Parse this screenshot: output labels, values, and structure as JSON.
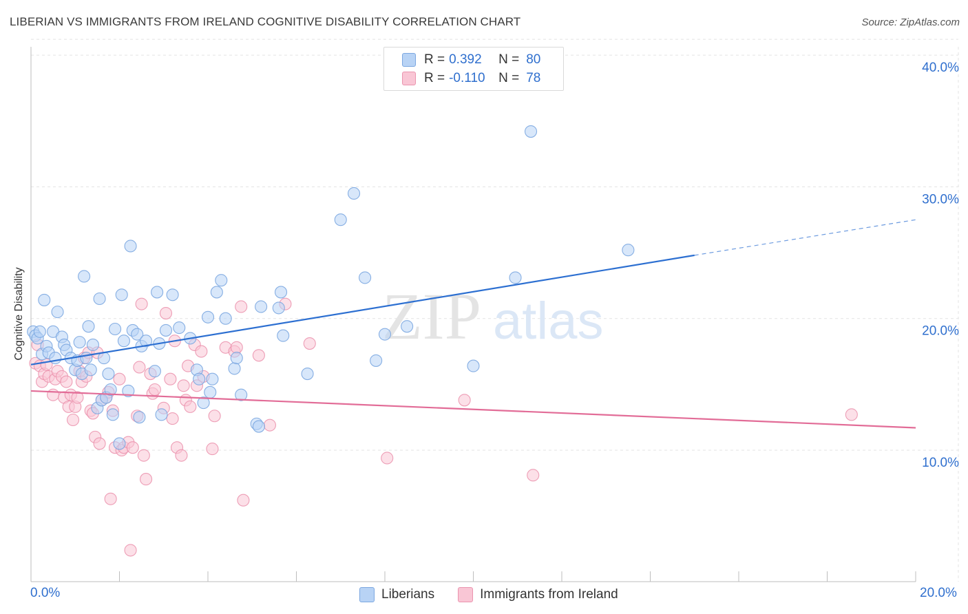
{
  "title": "LIBERIAN VS IMMIGRANTS FROM IRELAND COGNITIVE DISABILITY CORRELATION CHART",
  "source": "Source: ZipAtlas.com",
  "watermark": {
    "zip": "ZIP",
    "atlas": "atlas"
  },
  "legend": {
    "r_label": "R =",
    "n_label": "N =",
    "rows": [
      {
        "r": "0.392",
        "n": "80",
        "color": "#b8d3f5"
      },
      {
        "r": "-0.110",
        "n": "78",
        "color": "#f9c6d5"
      }
    ]
  },
  "bottom_legend": [
    "Liberians",
    "Immigrants from Ireland"
  ],
  "chart_data": {
    "type": "scatter",
    "title": "LIBERIAN VS IMMIGRANTS FROM IRELAND COGNITIVE DISABILITY CORRELATION CHART",
    "xlabel": "",
    "ylabel": "Cognitive Disability",
    "xlim": [
      0,
      20
    ],
    "ylim": [
      0,
      42
    ],
    "x_tick_labels": [
      "0.0%",
      "20.0%"
    ],
    "y_tick_labels": [
      "10.0%",
      "20.0%",
      "30.0%",
      "40.0%"
    ],
    "y_ticks": [
      10,
      20,
      30,
      40
    ],
    "x_minor_ticks": [
      0,
      2,
      4,
      6,
      8,
      10,
      12,
      14,
      16,
      18,
      20
    ],
    "grid": true,
    "series": [
      {
        "name": "Liberians",
        "color": "#7aa6e0",
        "fill": "#b8d3f5",
        "trend": {
          "x0": 0,
          "y0": 16.5,
          "x1": 15,
          "y1": 24.8,
          "dash_to_x": 20,
          "dash_to_y": 27.5,
          "color": "#2c6fd1"
        },
        "points": [
          [
            0.05,
            19.0
          ],
          [
            0.1,
            18.7
          ],
          [
            0.15,
            18.5
          ],
          [
            0.2,
            19.0
          ],
          [
            0.25,
            17.3
          ],
          [
            0.3,
            21.4
          ],
          [
            0.35,
            17.9
          ],
          [
            0.4,
            17.4
          ],
          [
            0.5,
            19.0
          ],
          [
            0.55,
            17.0
          ],
          [
            0.6,
            20.5
          ],
          [
            0.7,
            18.6
          ],
          [
            0.75,
            18.0
          ],
          [
            0.8,
            17.6
          ],
          [
            0.9,
            17.0
          ],
          [
            1.0,
            16.1
          ],
          [
            1.05,
            16.8
          ],
          [
            1.1,
            18.2
          ],
          [
            1.15,
            15.8
          ],
          [
            1.2,
            23.2
          ],
          [
            1.25,
            17.0
          ],
          [
            1.3,
            19.4
          ],
          [
            1.35,
            16.1
          ],
          [
            1.4,
            18.0
          ],
          [
            1.5,
            13.2
          ],
          [
            1.55,
            21.5
          ],
          [
            1.6,
            13.8
          ],
          [
            1.65,
            17.0
          ],
          [
            1.7,
            14.0
          ],
          [
            1.75,
            15.8
          ],
          [
            1.8,
            14.6
          ],
          [
            1.85,
            12.7
          ],
          [
            1.9,
            19.2
          ],
          [
            2.0,
            10.5
          ],
          [
            2.05,
            21.8
          ],
          [
            2.1,
            18.3
          ],
          [
            2.2,
            14.5
          ],
          [
            2.25,
            25.5
          ],
          [
            2.3,
            19.1
          ],
          [
            2.4,
            18.8
          ],
          [
            2.45,
            12.5
          ],
          [
            2.5,
            17.9
          ],
          [
            2.6,
            18.3
          ],
          [
            2.8,
            16.0
          ],
          [
            2.85,
            22.0
          ],
          [
            2.9,
            18.1
          ],
          [
            2.95,
            12.7
          ],
          [
            3.05,
            19.1
          ],
          [
            3.2,
            21.8
          ],
          [
            3.35,
            19.3
          ],
          [
            3.6,
            18.5
          ],
          [
            3.75,
            16.1
          ],
          [
            3.8,
            15.4
          ],
          [
            3.9,
            13.6
          ],
          [
            4.0,
            20.1
          ],
          [
            4.05,
            14.4
          ],
          [
            4.1,
            15.4
          ],
          [
            4.2,
            22.0
          ],
          [
            4.3,
            22.9
          ],
          [
            4.4,
            20.0
          ],
          [
            4.6,
            16.2
          ],
          [
            4.65,
            17.0
          ],
          [
            4.75,
            14.2
          ],
          [
            5.1,
            12.0
          ],
          [
            5.15,
            11.8
          ],
          [
            5.2,
            20.9
          ],
          [
            5.6,
            20.8
          ],
          [
            5.65,
            22.0
          ],
          [
            5.7,
            18.7
          ],
          [
            6.25,
            15.8
          ],
          [
            7.0,
            27.5
          ],
          [
            7.3,
            29.5
          ],
          [
            7.55,
            23.1
          ],
          [
            7.8,
            16.8
          ],
          [
            8.0,
            18.8
          ],
          [
            8.5,
            19.4
          ],
          [
            10.0,
            16.4
          ],
          [
            10.95,
            23.1
          ],
          [
            11.3,
            34.2
          ],
          [
            13.5,
            25.2
          ]
        ]
      },
      {
        "name": "Immigrants from Ireland",
        "color": "#eb93ae",
        "fill": "#f9c6d5",
        "trend": {
          "x0": 0,
          "y0": 14.5,
          "x1": 20,
          "y1": 11.7,
          "color": "#e26c97"
        },
        "points": [
          [
            0.1,
            16.6
          ],
          [
            0.15,
            18.0
          ],
          [
            0.2,
            16.4
          ],
          [
            0.25,
            15.2
          ],
          [
            0.3,
            15.8
          ],
          [
            0.35,
            16.5
          ],
          [
            0.4,
            15.6
          ],
          [
            0.5,
            14.2
          ],
          [
            0.55,
            15.4
          ],
          [
            0.6,
            16.0
          ],
          [
            0.7,
            15.6
          ],
          [
            0.75,
            14.0
          ],
          [
            0.8,
            15.2
          ],
          [
            0.85,
            13.3
          ],
          [
            0.9,
            14.2
          ],
          [
            0.95,
            12.3
          ],
          [
            1.0,
            13.3
          ],
          [
            1.05,
            14.0
          ],
          [
            1.1,
            16.0
          ],
          [
            1.15,
            15.2
          ],
          [
            1.2,
            17.0
          ],
          [
            1.25,
            15.6
          ],
          [
            1.3,
            17.4
          ],
          [
            1.35,
            13.0
          ],
          [
            1.4,
            12.8
          ],
          [
            1.45,
            11.0
          ],
          [
            1.5,
            17.4
          ],
          [
            1.55,
            10.5
          ],
          [
            1.6,
            13.8
          ],
          [
            1.7,
            14.0
          ],
          [
            1.75,
            14.4
          ],
          [
            1.8,
            6.3
          ],
          [
            1.85,
            13.0
          ],
          [
            1.9,
            10.2
          ],
          [
            2.0,
            15.4
          ],
          [
            2.05,
            10.0
          ],
          [
            2.1,
            10.2
          ],
          [
            2.2,
            10.6
          ],
          [
            2.25,
            2.4
          ],
          [
            2.3,
            10.2
          ],
          [
            2.4,
            12.6
          ],
          [
            2.45,
            16.3
          ],
          [
            2.5,
            21.1
          ],
          [
            2.55,
            9.6
          ],
          [
            2.6,
            7.8
          ],
          [
            2.7,
            15.8
          ],
          [
            2.75,
            14.3
          ],
          [
            2.8,
            14.6
          ],
          [
            3.0,
            13.2
          ],
          [
            3.05,
            20.4
          ],
          [
            3.15,
            15.4
          ],
          [
            3.2,
            12.4
          ],
          [
            3.25,
            18.3
          ],
          [
            3.3,
            10.2
          ],
          [
            3.4,
            9.6
          ],
          [
            3.45,
            14.9
          ],
          [
            3.5,
            13.8
          ],
          [
            3.55,
            16.4
          ],
          [
            3.6,
            13.3
          ],
          [
            3.7,
            18.0
          ],
          [
            3.75,
            14.9
          ],
          [
            3.85,
            17.5
          ],
          [
            3.9,
            15.6
          ],
          [
            4.1,
            10.1
          ],
          [
            4.15,
            12.6
          ],
          [
            4.4,
            17.8
          ],
          [
            4.6,
            17.5
          ],
          [
            4.65,
            17.8
          ],
          [
            4.75,
            20.9
          ],
          [
            4.8,
            6.2
          ],
          [
            5.15,
            17.2
          ],
          [
            5.4,
            11.9
          ],
          [
            5.75,
            21.1
          ],
          [
            6.3,
            18.1
          ],
          [
            8.05,
            9.4
          ],
          [
            9.8,
            13.8
          ],
          [
            11.35,
            8.1
          ],
          [
            18.55,
            12.7
          ]
        ]
      }
    ]
  }
}
